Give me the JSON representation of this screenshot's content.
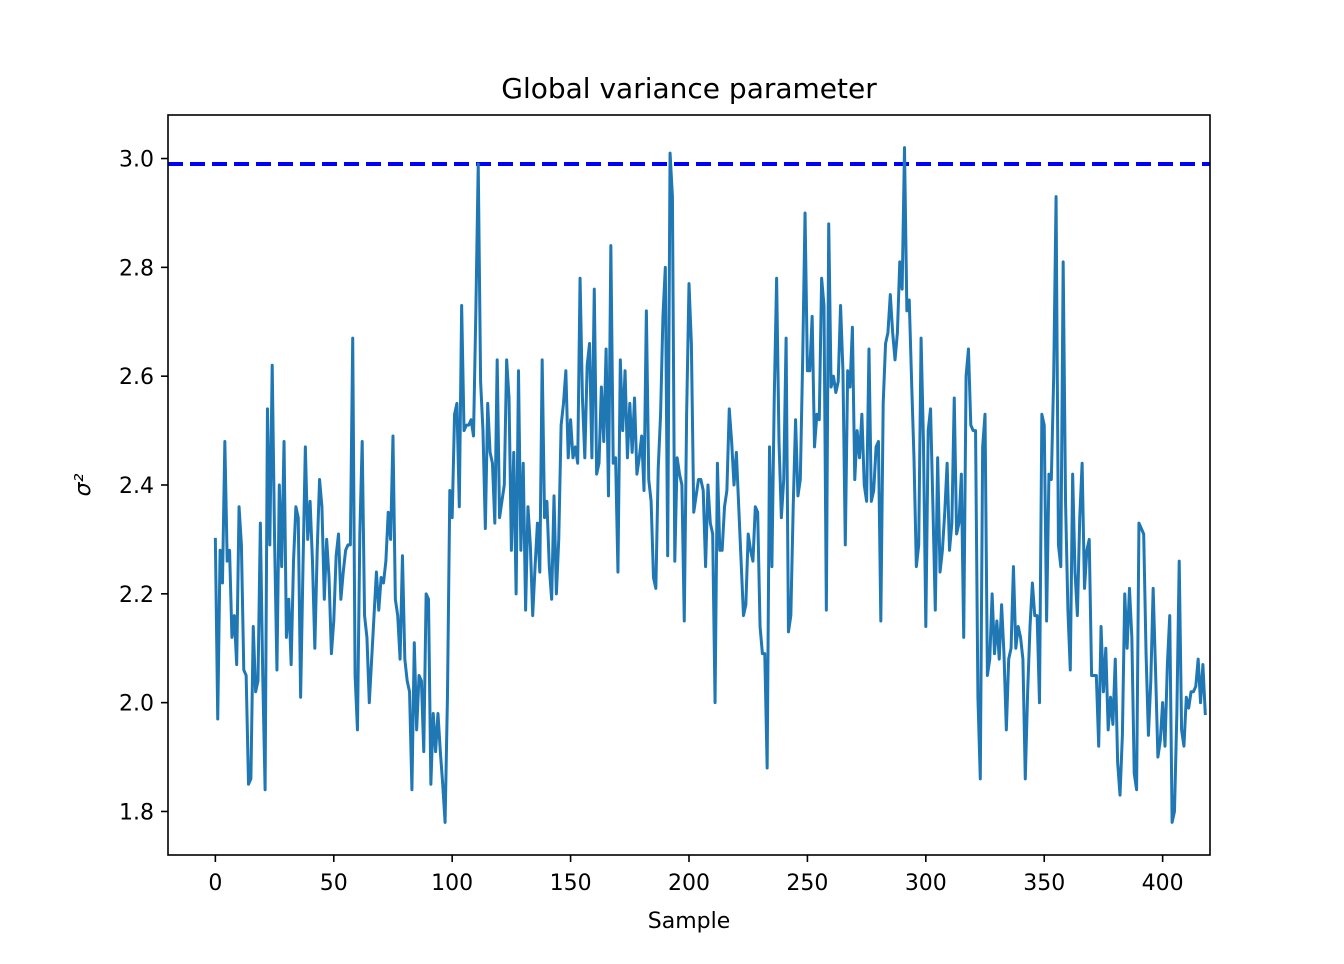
{
  "chart_data": {
    "type": "line",
    "title": "Global variance parameter",
    "xlabel": "Sample",
    "ylabel": "σ²",
    "xlim": [
      -20,
      420
    ],
    "ylim": [
      1.72,
      3.08
    ],
    "xticks": [
      0,
      50,
      100,
      150,
      200,
      250,
      300,
      350,
      400
    ],
    "xtick_labels": [
      "0",
      "50",
      "100",
      "150",
      "200",
      "250",
      "300",
      "350",
      "400"
    ],
    "yticks": [
      1.8,
      2.0,
      2.2,
      2.4,
      2.6,
      2.8,
      3.0
    ],
    "ytick_labels": [
      "1.8",
      "2.0",
      "2.2",
      "2.4",
      "2.6",
      "2.8",
      "3.0"
    ],
    "grid": false,
    "reference_line": {
      "y": 2.99,
      "style": "dashed",
      "color": "#0000ff"
    },
    "series": [
      {
        "color": "#1f77b4",
        "x_start": 0,
        "x_step": 1,
        "values": [
          2.3,
          1.97,
          2.28,
          2.22,
          2.48,
          2.26,
          2.28,
          2.12,
          2.16,
          2.07,
          2.36,
          2.29,
          2.06,
          2.05,
          1.85,
          1.86,
          2.14,
          2.02,
          2.04,
          2.33,
          2.05,
          1.84,
          2.54,
          2.29,
          2.62,
          2.3,
          2.06,
          2.4,
          2.25,
          2.48,
          2.12,
          2.19,
          2.07,
          2.26,
          2.36,
          2.34,
          2.01,
          2.25,
          2.47,
          2.3,
          2.37,
          2.26,
          2.1,
          2.28,
          2.41,
          2.36,
          2.19,
          2.3,
          2.23,
          2.09,
          2.15,
          2.27,
          2.31,
          2.19,
          2.24,
          2.28,
          2.29,
          2.29,
          2.67,
          2.05,
          1.95,
          2.31,
          2.48,
          2.16,
          2.12,
          2.0,
          2.08,
          2.16,
          2.24,
          2.17,
          2.23,
          2.22,
          2.26,
          2.35,
          2.3,
          2.49,
          2.19,
          2.16,
          2.08,
          2.27,
          2.08,
          2.04,
          2.02,
          1.84,
          2.11,
          1.95,
          2.05,
          2.04,
          1.91,
          2.2,
          2.19,
          1.85,
          1.98,
          1.91,
          1.98,
          1.91,
          1.85,
          1.78,
          2.01,
          2.39,
          2.34,
          2.53,
          2.55,
          2.36,
          2.73,
          2.5,
          2.51,
          2.51,
          2.52,
          2.49,
          2.72,
          2.99,
          2.59,
          2.5,
          2.32,
          2.55,
          2.46,
          2.44,
          2.33,
          2.63,
          2.34,
          2.37,
          2.4,
          2.63,
          2.56,
          2.28,
          2.46,
          2.2,
          2.61,
          2.28,
          2.44,
          2.17,
          2.36,
          2.29,
          2.16,
          2.25,
          2.33,
          2.24,
          2.63,
          2.34,
          2.37,
          2.25,
          2.19,
          2.38,
          2.2,
          2.3,
          2.51,
          2.55,
          2.61,
          2.45,
          2.52,
          2.45,
          2.47,
          2.44,
          2.78,
          2.56,
          2.45,
          2.62,
          2.66,
          2.45,
          2.76,
          2.42,
          2.44,
          2.58,
          2.48,
          2.65,
          2.38,
          2.84,
          2.44,
          2.45,
          2.24,
          2.63,
          2.5,
          2.61,
          2.45,
          2.55,
          2.46,
          2.56,
          2.42,
          2.45,
          2.49,
          2.39,
          2.72,
          2.41,
          2.37,
          2.23,
          2.21,
          2.43,
          2.53,
          2.71,
          2.8,
          2.27,
          3.01,
          2.93,
          2.26,
          2.45,
          2.42,
          2.4,
          2.15,
          2.53,
          2.77,
          2.66,
          2.35,
          2.38,
          2.41,
          2.41,
          2.39,
          2.25,
          2.4,
          2.33,
          2.31,
          2.0,
          2.44,
          2.28,
          2.28,
          2.36,
          2.39,
          2.54,
          2.48,
          2.4,
          2.46,
          2.36,
          2.26,
          2.16,
          2.18,
          2.31,
          2.28,
          2.26,
          2.36,
          2.35,
          2.14,
          2.09,
          2.09,
          1.88,
          2.47,
          2.25,
          2.56,
          2.78,
          2.48,
          2.34,
          2.41,
          2.67,
          2.13,
          2.16,
          2.36,
          2.52,
          2.38,
          2.41,
          2.63,
          2.9,
          2.61,
          2.61,
          2.71,
          2.47,
          2.53,
          2.52,
          2.78,
          2.73,
          2.17,
          2.88,
          2.58,
          2.6,
          2.57,
          2.59,
          2.73,
          2.61,
          2.29,
          2.61,
          2.58,
          2.69,
          2.41,
          2.5,
          2.45,
          2.53,
          2.4,
          2.37,
          2.65,
          2.37,
          2.39,
          2.47,
          2.48,
          2.15,
          2.55,
          2.66,
          2.68,
          2.75,
          2.68,
          2.63,
          2.68,
          2.81,
          2.76,
          3.02,
          2.72,
          2.74,
          2.59,
          2.45,
          2.25,
          2.29,
          2.67,
          2.48,
          2.14,
          2.5,
          2.54,
          2.36,
          2.17,
          2.45,
          2.24,
          2.28,
          2.35,
          2.44,
          2.28,
          2.33,
          2.56,
          2.31,
          2.33,
          2.42,
          2.12,
          2.6,
          2.65,
          2.51,
          2.5,
          2.5,
          2.01,
          1.86,
          2.47,
          2.53,
          2.05,
          2.08,
          2.2,
          2.09,
          2.15,
          2.08,
          2.18,
          2.09,
          1.95,
          2.08,
          2.1,
          2.25,
          2.1,
          2.14,
          2.12,
          2.08,
          1.86,
          2.02,
          2.14,
          2.22,
          2.16,
          2.16,
          2.0,
          2.53,
          2.51,
          2.15,
          2.42,
          2.41,
          2.6,
          2.93,
          2.29,
          2.25,
          2.81,
          2.37,
          2.17,
          2.06,
          2.42,
          2.24,
          2.16,
          2.34,
          2.44,
          2.21,
          2.28,
          2.3,
          2.05,
          2.05,
          2.05,
          1.92,
          2.14,
          2.02,
          2.1,
          1.95,
          2.01,
          1.96,
          2.08,
          1.89,
          1.83,
          1.94,
          2.2,
          2.1,
          2.21,
          2.12,
          1.87,
          1.84,
          2.33,
          2.32,
          2.31,
          2.09,
          1.94,
          2.04,
          2.21,
          2.06,
          1.9,
          1.93,
          2.0,
          1.92,
          2.07,
          2.16,
          1.78,
          1.8,
          1.98,
          2.26,
          1.95,
          1.92,
          2.01,
          1.99,
          2.02,
          2.02,
          2.03,
          2.08,
          2.0,
          2.07,
          1.98
        ]
      }
    ]
  }
}
